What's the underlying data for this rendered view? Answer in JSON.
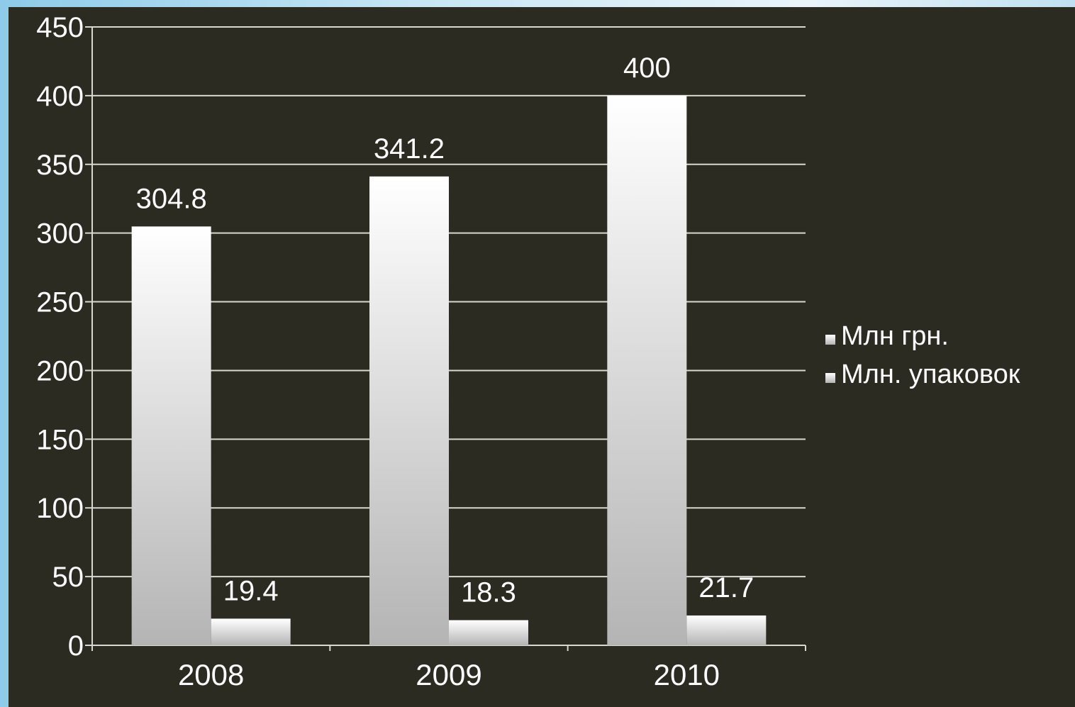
{
  "chart_data": {
    "type": "bar",
    "categories": [
      "2008",
      "2009",
      "2010"
    ],
    "series": [
      {
        "name": "Млн грн.",
        "values": [
          304.8,
          341.2,
          400
        ],
        "labels": [
          "304.8",
          "341.2",
          "400"
        ]
      },
      {
        "name": "Млн. упаковок",
        "values": [
          19.4,
          18.3,
          21.7
        ],
        "labels": [
          "19.4",
          "18.3",
          "21.7"
        ]
      }
    ],
    "yticks": [
      "0",
      "50",
      "100",
      "150",
      "200",
      "250",
      "300",
      "350",
      "400",
      "450"
    ],
    "ylim": [
      0,
      450
    ],
    "grid": true,
    "legend": "right",
    "colors": {
      "background": "#2c2b21",
      "bar_top": "#ffffff",
      "bar_bottom": "#b4b4b4",
      "text": "#ffffff",
      "grid": "#d8d8d0"
    }
  }
}
